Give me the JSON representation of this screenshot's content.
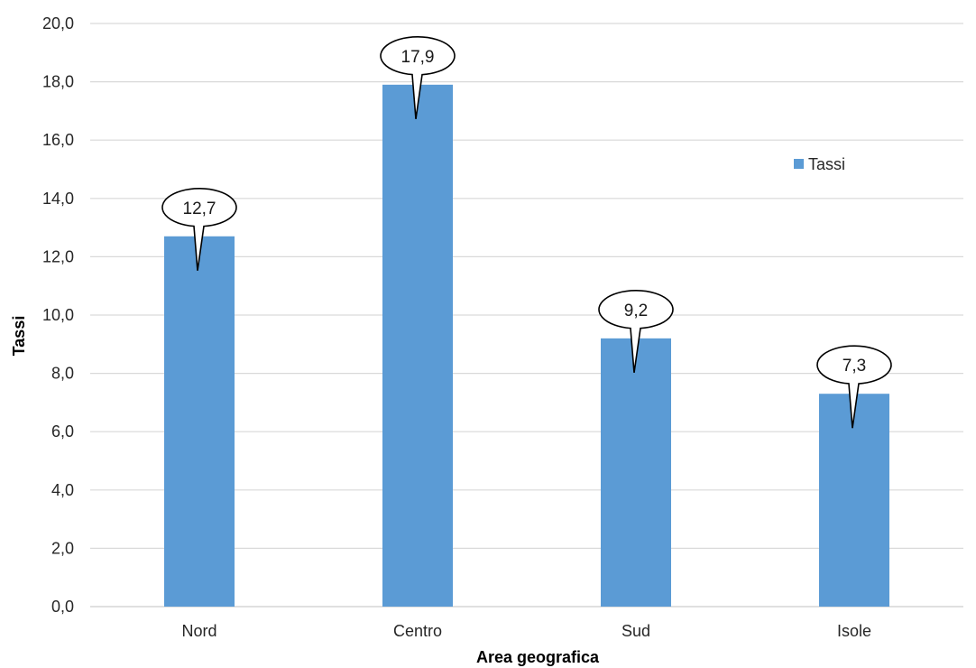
{
  "chart_data": {
    "type": "bar",
    "title": "",
    "xlabel": "Area geografica",
    "ylabel": "Tassi",
    "categories": [
      "Nord",
      "Centro",
      "Sud",
      "Isole"
    ],
    "series": [
      {
        "name": "Tassi",
        "values": [
          12.7,
          17.9,
          9.2,
          7.3
        ],
        "data_labels": [
          "12,7",
          "17,9",
          "9,2",
          "7,3"
        ]
      }
    ],
    "ylim": [
      0,
      20
    ],
    "y_ticks": [
      "0,0",
      "2,0",
      "4,0",
      "6,0",
      "8,0",
      "10,0",
      "12,0",
      "14,0",
      "16,0",
      "18,0",
      "20,0"
    ],
    "grid": true,
    "legend_position": "top-right",
    "colors": {
      "bar": "#5b9bd5",
      "grid": "#d9d9d9",
      "axis": "#d9d9d9"
    }
  }
}
